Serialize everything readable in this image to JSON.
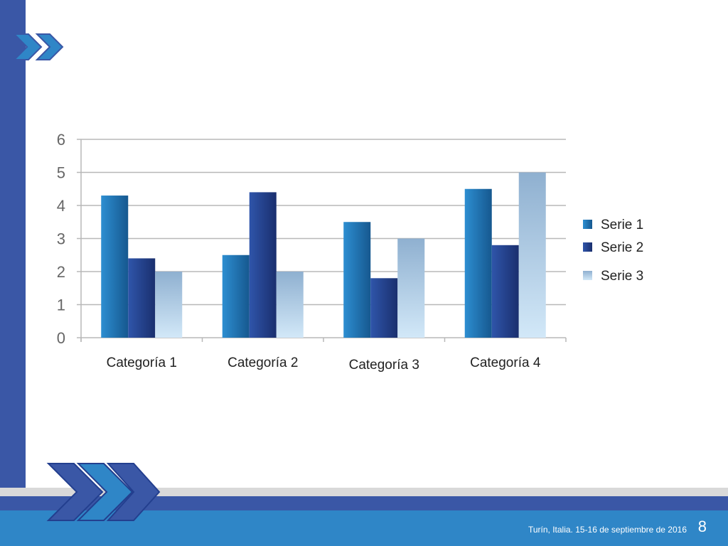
{
  "footer": {
    "text": "Turín, Italia. 15-16 de septiembre de 2016",
    "page": "8"
  },
  "colors": {
    "primary": "#3a57a6",
    "accent": "#2f86c7",
    "series1": "#1f74b8",
    "series2": "#233f8f",
    "series3": "#a9cfee"
  },
  "chart_data": {
    "type": "bar",
    "categories": [
      "Categoría 1",
      "Categoría 2",
      "Categoría 3",
      "Categoría 4"
    ],
    "series": [
      {
        "name": "Serie 1",
        "values": [
          4.3,
          2.5,
          3.5,
          4.5
        ]
      },
      {
        "name": "Serie 2",
        "values": [
          2.4,
          4.4,
          1.8,
          2.8
        ]
      },
      {
        "name": "Serie 3",
        "values": [
          2,
          2,
          3,
          5
        ]
      }
    ],
    "yticks": [
      "0",
      "1",
      "2",
      "3",
      "4",
      "5",
      "6"
    ],
    "ylim": [
      0,
      6
    ],
    "grid": true,
    "legend_position": "right"
  }
}
